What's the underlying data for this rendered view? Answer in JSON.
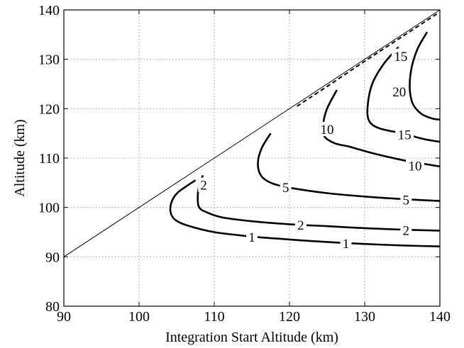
{
  "chart_data": {
    "type": "line",
    "xlabel": "Integration Start Altitude (km)",
    "ylabel": "Altitude (km)",
    "xlim": [
      90,
      140
    ],
    "ylim": [
      80,
      140
    ],
    "xticks": [
      90,
      100,
      110,
      120,
      130,
      140
    ],
    "yticks": [
      80,
      90,
      100,
      110,
      120,
      130,
      140
    ],
    "grid": true,
    "diagonal": [
      [
        90,
        90
      ],
      [
        140,
        140
      ]
    ],
    "dashed_curve": [
      [
        121,
        120.5
      ],
      [
        125,
        124.5
      ],
      [
        130,
        129.6
      ],
      [
        135,
        134.6
      ],
      [
        139.6,
        139.2
      ]
    ],
    "contours": [
      {
        "level": "1",
        "points": [
          [
            107.5,
            105.5
          ],
          [
            106.2,
            104.2
          ],
          [
            105,
            102.8
          ],
          [
            104.3,
            101
          ],
          [
            104.2,
            99
          ],
          [
            104.8,
            97.5
          ],
          [
            106.5,
            96.3
          ],
          [
            110,
            95
          ],
          [
            115,
            94.1
          ],
          [
            120,
            93.5
          ],
          [
            125,
            93
          ],
          [
            130,
            92.6
          ],
          [
            135,
            92.3
          ],
          [
            140,
            92.1
          ]
        ]
      },
      {
        "level": "2",
        "points": [
          [
            108.5,
            106.5
          ],
          [
            108,
            104.5
          ],
          [
            107.8,
            102
          ],
          [
            108,
            100
          ],
          [
            109,
            99
          ],
          [
            111,
            98
          ],
          [
            115,
            97.2
          ],
          [
            120,
            96.6
          ],
          [
            125,
            96.2
          ],
          [
            130,
            95.8
          ],
          [
            135,
            95.5
          ],
          [
            140,
            95.3
          ]
        ]
      },
      {
        "level": "5",
        "points": [
          [
            117.5,
            115
          ],
          [
            116.3,
            112
          ],
          [
            115.8,
            109
          ],
          [
            116.2,
            106.5
          ],
          [
            117.5,
            105
          ],
          [
            120,
            104
          ],
          [
            125,
            102.9
          ],
          [
            130,
            102.2
          ],
          [
            135,
            101.7
          ],
          [
            140,
            101.3
          ]
        ]
      },
      {
        "level": "10",
        "points": [
          [
            126.3,
            123.8
          ],
          [
            125,
            120
          ],
          [
            124.5,
            117
          ],
          [
            124.6,
            114.5
          ],
          [
            126,
            113
          ],
          [
            128,
            112.3
          ],
          [
            131,
            111
          ],
          [
            135,
            109.6
          ],
          [
            138,
            108.8
          ],
          [
            140,
            108.3
          ]
        ]
      },
      {
        "level": "15",
        "points": [
          [
            134.5,
            132.5
          ],
          [
            132.5,
            129
          ],
          [
            131,
            125
          ],
          [
            130.4,
            120.5
          ],
          [
            130.6,
            117.5
          ],
          [
            132,
            116
          ],
          [
            135,
            115
          ],
          [
            138,
            113.8
          ],
          [
            140,
            113.3
          ]
        ]
      },
      {
        "level": "20",
        "points": [
          [
            138.3,
            135.5
          ],
          [
            137,
            132
          ],
          [
            136.2,
            128
          ],
          [
            136,
            124
          ],
          [
            136.4,
            121
          ],
          [
            137.5,
            119
          ],
          [
            139,
            118
          ],
          [
            140,
            117.8
          ]
        ]
      }
    ],
    "contour_labels": [
      {
        "text": "1",
        "x": 115,
        "y": 94.1
      },
      {
        "text": "1",
        "x": 127.5,
        "y": 92.8
      },
      {
        "text": "2",
        "x": 108.6,
        "y": 104.6
      },
      {
        "text": "2",
        "x": 121.5,
        "y": 96.5
      },
      {
        "text": "2",
        "x": 135.5,
        "y": 95.4
      },
      {
        "text": "5",
        "x": 119.5,
        "y": 104.1
      },
      {
        "text": "5",
        "x": 135.5,
        "y": 101.6
      },
      {
        "text": "10",
        "x": 125,
        "y": 115.9
      },
      {
        "text": "10",
        "x": 136.7,
        "y": 108.5
      },
      {
        "text": "15",
        "x": 134.8,
        "y": 130.7
      },
      {
        "text": "15",
        "x": 135.3,
        "y": 114.8
      },
      {
        "text": "20",
        "x": 134.6,
        "y": 123.5
      }
    ]
  }
}
